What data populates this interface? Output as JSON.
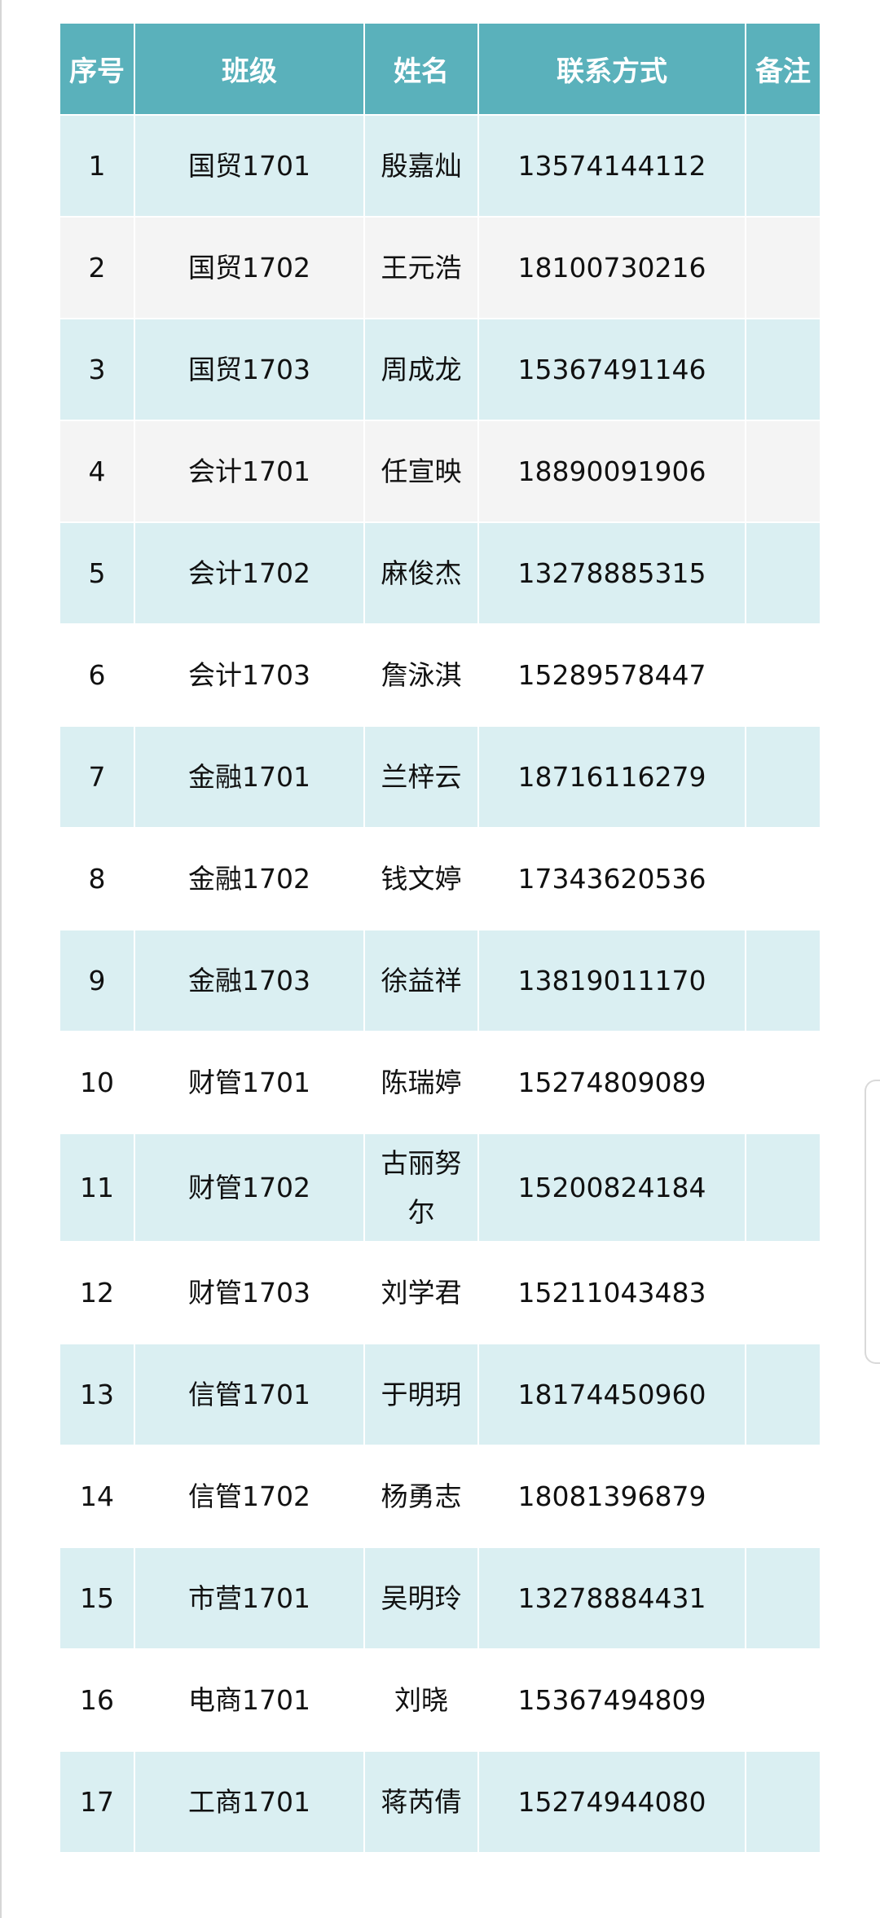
{
  "table": {
    "headers": [
      "序号",
      "班级",
      "姓名",
      "联系方式",
      "备注"
    ],
    "rows": [
      {
        "no": "1",
        "class": "国贸1701",
        "name": "殷嘉灿",
        "contact": "13574144112",
        "note": ""
      },
      {
        "no": "2",
        "class": "国贸1702",
        "name": "王元浩",
        "contact": "18100730216",
        "note": ""
      },
      {
        "no": "3",
        "class": "国贸1703",
        "name": "周成龙",
        "contact": "15367491146",
        "note": ""
      },
      {
        "no": "4",
        "class": "会计1701",
        "name": "任宣映",
        "contact": "18890091906",
        "note": ""
      },
      {
        "no": "5",
        "class": "会计1702",
        "name": "麻俊杰",
        "contact": "13278885315",
        "note": ""
      },
      {
        "no": "6",
        "class": "会计1703",
        "name": "詹泳淇",
        "contact": "15289578447",
        "note": ""
      },
      {
        "no": "7",
        "class": "金融1701",
        "name": "兰梓云",
        "contact": "18716116279",
        "note": ""
      },
      {
        "no": "8",
        "class": "金融1702",
        "name": "钱文婷",
        "contact": "17343620536",
        "note": ""
      },
      {
        "no": "9",
        "class": "金融1703",
        "name": "徐益祥",
        "contact": "13819011170",
        "note": ""
      },
      {
        "no": "10",
        "class": "财管1701",
        "name": "陈瑞婷",
        "contact": "15274809089",
        "note": ""
      },
      {
        "no": "11",
        "class": "财管1702",
        "name": "古丽努尔",
        "contact": "15200824184",
        "note": ""
      },
      {
        "no": "12",
        "class": "财管1703",
        "name": "刘学君",
        "contact": "15211043483",
        "note": ""
      },
      {
        "no": "13",
        "class": "信管1701",
        "name": "于明玥",
        "contact": "18174450960",
        "note": ""
      },
      {
        "no": "14",
        "class": "信管1702",
        "name": "杨勇志",
        "contact": "18081396879",
        "note": ""
      },
      {
        "no": "15",
        "class": "市营1701",
        "name": "吴明玲",
        "contact": "13278884431",
        "note": ""
      },
      {
        "no": "16",
        "class": "电商1701",
        "name": "刘晓",
        "contact": "15367494809",
        "note": ""
      },
      {
        "no": "17",
        "class": "工商1701",
        "name": "蒋芮倩",
        "contact": "15274944080",
        "note": ""
      }
    ]
  },
  "colors": {
    "header": "#5ab1bb",
    "row_cyan": "#daeff2",
    "row_gray": "#f4f4f4",
    "row_white": "#ffffff"
  }
}
